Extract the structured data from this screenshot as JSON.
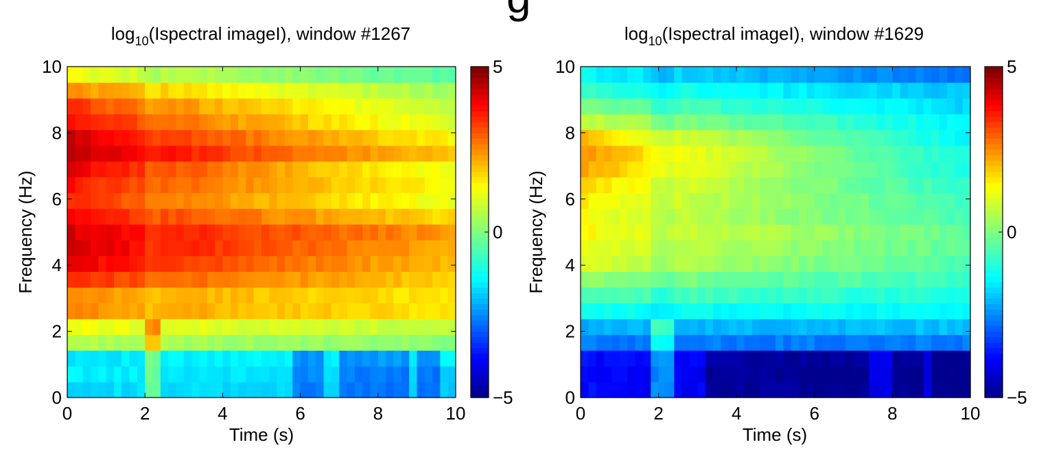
{
  "figure": {
    "cropped_heading_glyph": "g"
  },
  "colormap": {
    "name": "jet",
    "stops": [
      "#00008f",
      "#0000ff",
      "#00ffff",
      "#ffff00",
      "#ff0000",
      "#800000"
    ]
  },
  "chart_data": [
    {
      "type": "heatmap",
      "title_main": "log",
      "title_sub": "10",
      "title_rest": "(Ispectral imageI), window #1267",
      "xlabel": "Time (s)",
      "ylabel": "Frequency (Hz)",
      "xlim": [
        0,
        10
      ],
      "ylim": [
        0,
        10
      ],
      "xticks": [
        "0",
        "2",
        "4",
        "6",
        "8",
        "10"
      ],
      "yticks": [
        "0",
        "2",
        "4",
        "6",
        "8",
        "10"
      ],
      "colorbar": {
        "min": -5,
        "max": 5,
        "ticks": [
          "5",
          "0",
          "−5"
        ]
      },
      "grid": false,
      "description_values": {
        "peak_log10_power": 4.6,
        "peak_freq_bands_hz": [
          7.5,
          4.8
        ],
        "low_band_hz": [
          0,
          1.5
        ],
        "low_band_level": -1.8
      },
      "rows": 21,
      "cols": 50,
      "anomaly_column_time_s": 2.2,
      "dark_segments_low_band": [
        [
          5.7,
          6.5
        ],
        [
          6.9,
          8.7
        ],
        [
          9.1,
          9.6
        ]
      ],
      "row_profile_t0": [
        -1.7,
        -1.5,
        -1.6,
        0.6,
        1.3,
        2.6,
        2.5,
        3.6,
        4.2,
        4.4,
        4.3,
        3.9,
        3.6,
        3.8,
        4.2,
        4.6,
        4.4,
        3.9,
        3.5,
        2.6,
        1.3
      ],
      "row_profile_t10": [
        -1.9,
        -1.8,
        -1.5,
        0.1,
        0.7,
        1.6,
        1.6,
        1.8,
        2.0,
        2.2,
        2.4,
        1.7,
        1.1,
        1.3,
        1.1,
        1.9,
        1.4,
        0.9,
        0.6,
        0.3,
        -0.5
      ]
    },
    {
      "type": "heatmap",
      "title_main": "log",
      "title_sub": "10",
      "title_rest": "(Ispectral imageI), window #1629",
      "xlabel": "Time (s)",
      "ylabel": "Frequency (Hz)",
      "xlim": [
        0,
        10
      ],
      "ylim": [
        0,
        10
      ],
      "xticks": [
        "0",
        "2",
        "4",
        "6",
        "8",
        "10"
      ],
      "yticks": [
        "0",
        "2",
        "4",
        "6",
        "8",
        "10"
      ],
      "colorbar": {
        "min": -5,
        "max": 5,
        "ticks": [
          "5",
          "0",
          "−5"
        ]
      },
      "grid": false,
      "description_values": {
        "peak_log10_power": 2.7,
        "peak_freq_bands_hz": [
          7.8,
          4.9
        ],
        "low_band_hz": [
          0,
          1.5
        ],
        "low_band_level": -4.0
      },
      "rows": 21,
      "cols": 50,
      "anomaly_column_time_s": 2.1,
      "dark_segments_low_band": [
        [
          3.3,
          6.5
        ],
        [
          6.7,
          7.4
        ],
        [
          8.1,
          8.7
        ],
        [
          9.1,
          10.0
        ]
      ],
      "row_profile_t0": [
        -3.8,
        -3.9,
        -3.8,
        -2.7,
        -2.2,
        -1.3,
        -0.4,
        0.3,
        1.1,
        1.3,
        1.5,
        1.4,
        1.6,
        1.9,
        2.4,
        2.6,
        2.1,
        0.9,
        0.0,
        -0.8,
        -1.3
      ],
      "row_profile_t10": [
        -4.2,
        -4.2,
        -4.1,
        -2.7,
        -2.0,
        -1.4,
        -1.1,
        -0.8,
        -0.6,
        -0.4,
        -0.3,
        -0.6,
        -0.7,
        -0.9,
        -1.1,
        -1.2,
        -1.4,
        -1.5,
        -1.8,
        -2.0,
        -2.8
      ]
    }
  ]
}
